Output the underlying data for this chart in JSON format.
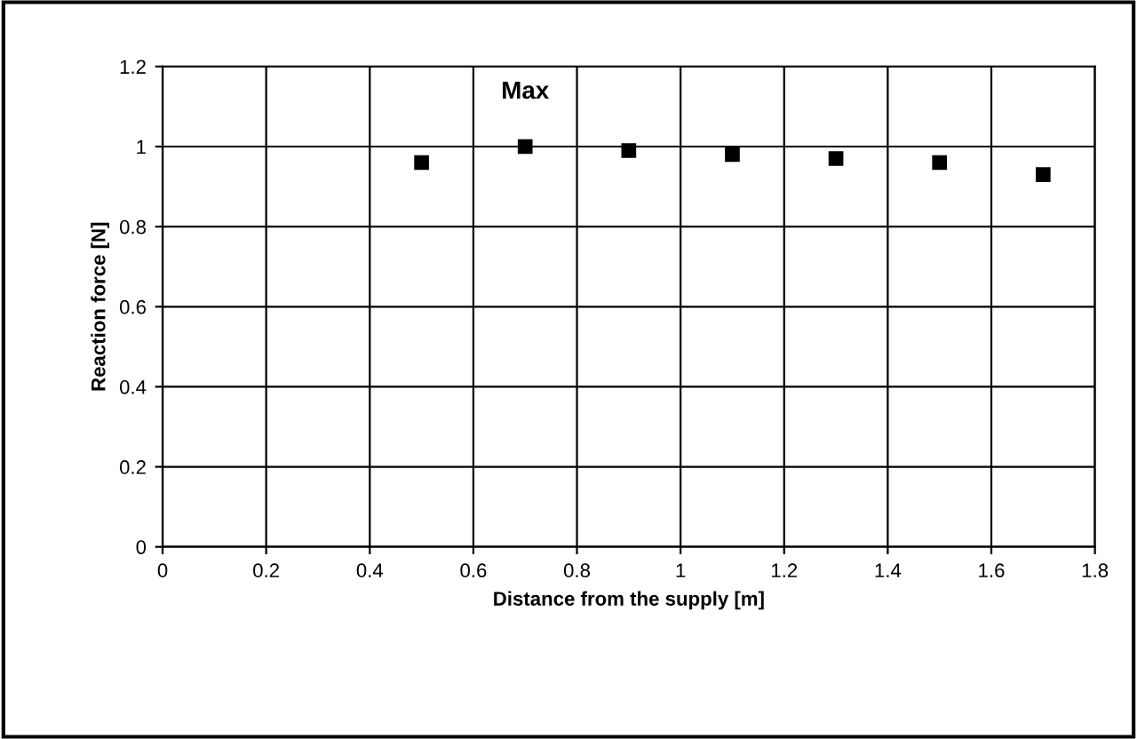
{
  "chart_data": {
    "type": "scatter",
    "xlabel": "Distance from the supply [m]",
    "ylabel": "Reaction force [N]",
    "x": [
      0.5,
      0.7,
      0.9,
      1.1,
      1.3,
      1.5,
      1.7
    ],
    "series": [
      {
        "color": "#000000",
        "values": [
          0.96,
          1.0,
          0.99,
          0.98,
          0.97,
          0.96,
          0.93
        ]
      }
    ],
    "annotations": [
      {
        "text": "Max",
        "x": 0.7,
        "y": 1.0
      }
    ],
    "xlim": [
      0,
      1.8
    ],
    "ylim": [
      0,
      1.2
    ],
    "xticks": [
      0,
      0.2,
      0.4,
      0.6,
      0.8,
      1,
      1.2,
      1.4,
      1.6,
      1.8
    ],
    "yticks": [
      0,
      0.2,
      0.4,
      0.6,
      0.8,
      1,
      1.2
    ],
    "grid": true,
    "marker": "square",
    "legend": false
  }
}
